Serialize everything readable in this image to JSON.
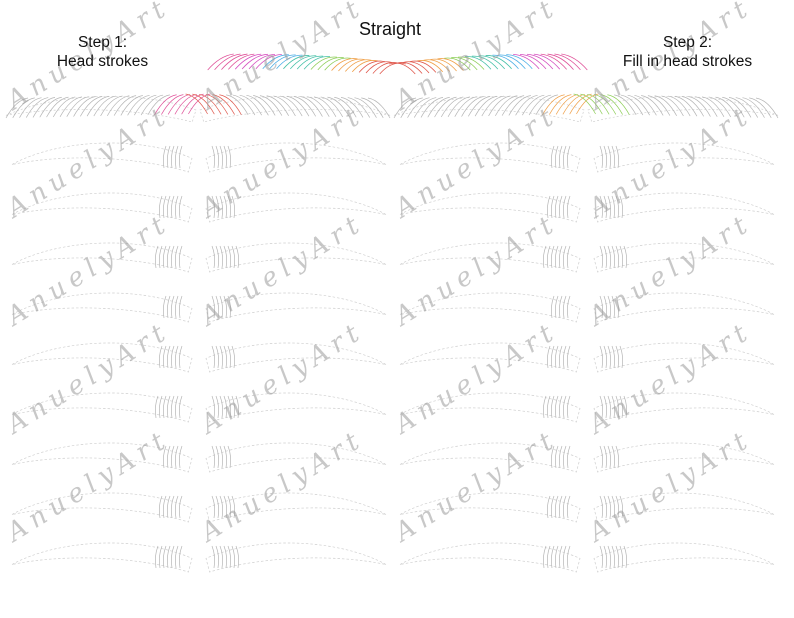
{
  "sheet": {
    "title": "Straight",
    "step1": {
      "line1": "Step 1:",
      "line2": "Head strokes"
    },
    "step2": {
      "line1": "Step 2:",
      "line2": "Fill in head strokes"
    },
    "watermark": "AnuelyArt",
    "practice_rows": 8,
    "colors": {
      "ink": "#111111",
      "guide": "#cfcfcf",
      "stroke_gray": "#b5b5b5",
      "watermark": "#9a9a9a",
      "pink": "#e0529a",
      "magenta": "#d64fc0",
      "blue": "#4fb0e6",
      "teal": "#46c1a8",
      "green": "#8fcf5a",
      "orange": "#f0a14a",
      "red": "#e05a4f"
    }
  }
}
